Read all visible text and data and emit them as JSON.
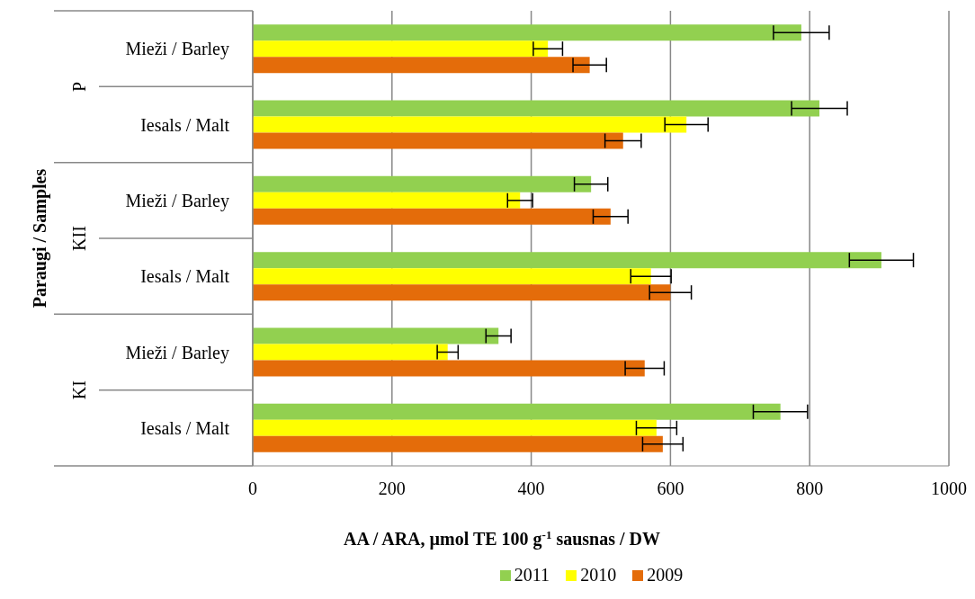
{
  "chart_data": {
    "type": "bar",
    "orientation": "horizontal",
    "xlabel": "AA / ARA, µmol TE 100 g$^{-1}$ sausnas / DW",
    "ylabel": "Paraugi / Samples",
    "categories": [
      "Mieži / Barley",
      "Iesals / Malt",
      "Mieži / Barley",
      "Iesals / Malt",
      "Mieži / Barley",
      "Iesals / Malt"
    ],
    "annotations": [
      "P",
      "KII",
      "KI"
    ],
    "series": [
      {
        "name": "2011",
        "color": "#92d050",
        "values": [
          788,
          814,
          486,
          903,
          353,
          758
        ],
        "errors": [
          40,
          40,
          24,
          46,
          18,
          39
        ]
      },
      {
        "name": "2010",
        "color": "#ffff00",
        "values": [
          424,
          623,
          384,
          572,
          280,
          580
        ],
        "errors": [
          21,
          31,
          18,
          29,
          15,
          29
        ]
      },
      {
        "name": "2009",
        "color": "#e46c0a",
        "values": [
          484,
          532,
          514,
          600,
          563,
          589
        ],
        "errors": [
          24,
          26,
          25,
          30,
          28,
          29
        ]
      }
    ],
    "xlim": [
      0,
      1000
    ],
    "xticks": [
      0,
      200,
      400,
      600,
      800,
      1000
    ],
    "grid": "x",
    "legend": "bottom"
  }
}
